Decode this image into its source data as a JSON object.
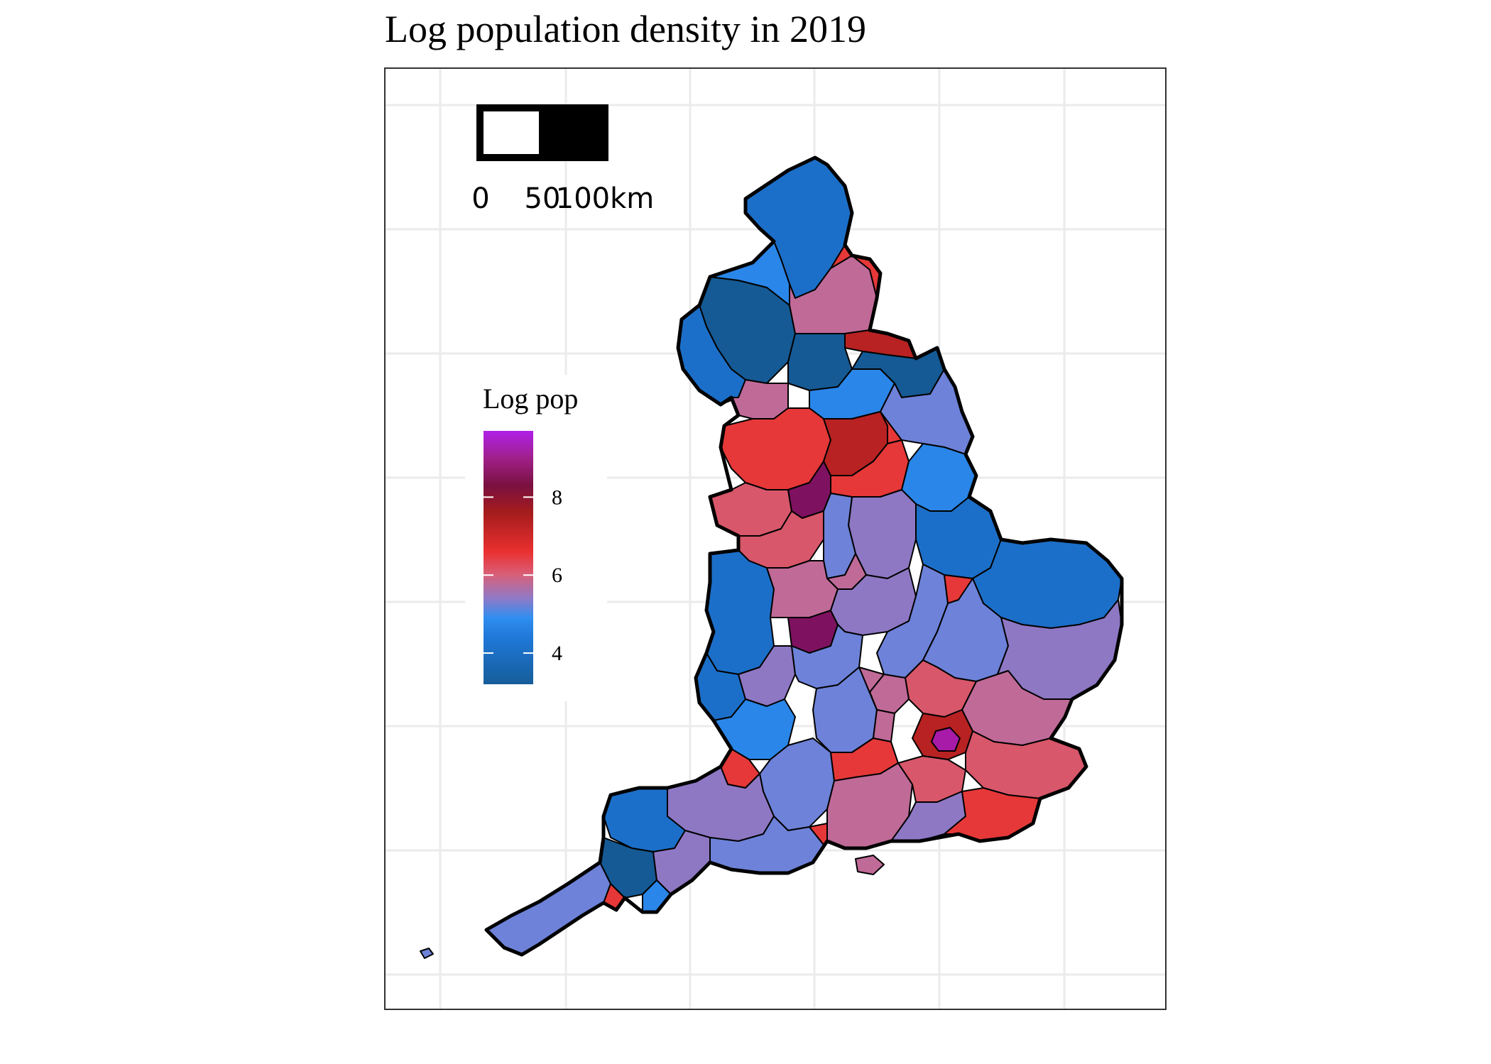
{
  "title": "Log population density in 2019",
  "map": {
    "region": "England",
    "fill_variable": "Log pop",
    "boundary_color": "#000000"
  },
  "scale_bar": {
    "labels": [
      "0",
      "50",
      "100km"
    ],
    "segment_colors": [
      "#ffffff",
      "#000000"
    ]
  },
  "legend": {
    "title": "Log pop",
    "ticks": [
      "4",
      "6",
      "8"
    ],
    "tick_values": [
      4,
      6,
      8
    ],
    "range": [
      3.2,
      9.7
    ],
    "gradient_stops": [
      {
        "value": 3.2,
        "color": "#165d9a"
      },
      {
        "value": 4.4,
        "color": "#1f78d8"
      },
      {
        "value": 4.9,
        "color": "#2f8ef0"
      },
      {
        "value": 5.4,
        "color": "#8f7ac8"
      },
      {
        "value": 6.0,
        "color": "#d8607a"
      },
      {
        "value": 6.6,
        "color": "#ea3030"
      },
      {
        "value": 7.6,
        "color": "#a51c1c"
      },
      {
        "value": 8.3,
        "color": "#7a1040"
      },
      {
        "value": 9.0,
        "color": "#a0208a"
      },
      {
        "value": 9.7,
        "color": "#b020e8"
      }
    ]
  },
  "colors": {
    "very_low": "#155a94",
    "low": "#1c6fc8",
    "low_mid": "#2a86e8",
    "mid_low": "#6d82d8",
    "mid": "#8e78c4",
    "mid_high": "#c06a98",
    "high_low": "#d8576a",
    "high": "#e63838",
    "very_high": "#b82222",
    "max": "#7e1260",
    "london_core": "#a81aa8"
  },
  "grid": {
    "shown": true,
    "color": "#ebebeb"
  }
}
